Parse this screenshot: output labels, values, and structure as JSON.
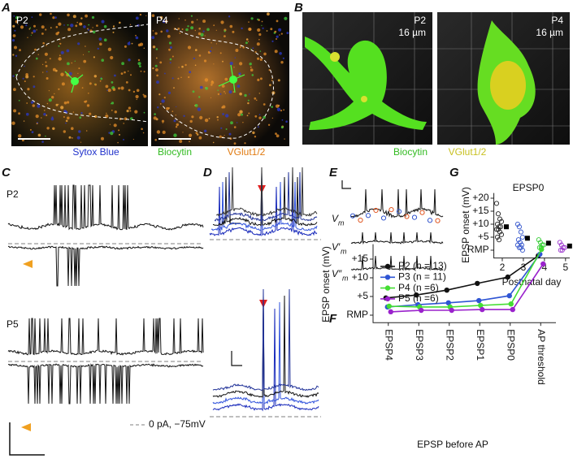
{
  "figure": {
    "A": {
      "letter": "A",
      "images": [
        "P2",
        "P4"
      ],
      "legend": [
        "Sytox Blue",
        "Biocytin",
        "VGlut1/2"
      ]
    },
    "B": {
      "letter": "B",
      "images": [
        {
          "age": "P2",
          "depth": "16 µm"
        },
        {
          "age": "P4",
          "depth": "16 µm"
        }
      ],
      "legend": [
        "Biocytin",
        "VGlut1/2"
      ]
    },
    "C": {
      "letter": "C",
      "rows": [
        "P2",
        "P5"
      ],
      "baseline_note": "0 pA, −75mV"
    },
    "D": {
      "letter": "D"
    },
    "E": {
      "letter": "E",
      "traces": [
        {
          "symbol": "V",
          "sub": "m"
        },
        {
          "symbol": "V′",
          "sub": "m"
        },
        {
          "symbol": "V″",
          "sub": "m"
        }
      ]
    }
  },
  "chart_data": [
    {
      "type": "scatter",
      "panel": "G",
      "title": "EPSP0",
      "y_label": "EPSP onset (mV)",
      "x_label": "Postnatal day",
      "xlim": [
        1.6,
        5.2
      ],
      "xticks": [
        2,
        3,
        4,
        5
      ],
      "ylim": [
        -3,
        22
      ],
      "yticks": [
        {
          "value": 0,
          "label": "RMP"
        },
        {
          "value": 5,
          "label": "+5"
        },
        {
          "value": 10,
          "label": "+10"
        },
        {
          "value": 15,
          "label": "+15"
        },
        {
          "value": 20,
          "label": "+20"
        }
      ],
      "series": [
        {
          "color": "#222222",
          "marker": "open",
          "x": [
            2,
            2,
            2,
            2,
            2,
            2,
            2,
            2,
            2,
            2,
            2,
            2,
            2
          ],
          "values": [
            18,
            14,
            12,
            11,
            10,
            9,
            9,
            8,
            8,
            7,
            6,
            5,
            4
          ]
        },
        {
          "color": "#3355cc",
          "marker": "open",
          "x": [
            3,
            3,
            3,
            3,
            3,
            3,
            3,
            3,
            3,
            3,
            3
          ],
          "values": [
            10,
            9,
            7,
            5,
            4,
            3,
            2,
            2,
            1,
            1,
            0
          ]
        },
        {
          "color": "#33cc33",
          "marker": "open",
          "x": [
            4,
            4,
            4,
            4,
            4,
            4
          ],
          "values": [
            4,
            3,
            2,
            2,
            1,
            1
          ]
        },
        {
          "color": "#9933cc",
          "marker": "open",
          "x": [
            5,
            5,
            5,
            5,
            5,
            5
          ],
          "values": [
            3,
            2,
            1,
            1,
            0,
            0
          ]
        },
        {
          "color": "#000000",
          "marker": "filled",
          "x": [
            2,
            3,
            4,
            5
          ],
          "values": [
            9,
            4.6,
            2.7,
            1.6
          ]
        }
      ]
    },
    {
      "type": "line",
      "panel": "F",
      "y_label": "EPSP onset (mV)",
      "x_label": "EPSP before AP",
      "categories": [
        "EPSP4",
        "EPSP3",
        "EPSP2",
        "EPSP1",
        "EPSP0",
        "AP threshold"
      ],
      "ylim": [
        -2,
        19
      ],
      "yticks": [
        {
          "value": 0,
          "label": "RMP"
        },
        {
          "value": 5,
          "label": "+5"
        },
        {
          "value": 10,
          "label": "+10"
        },
        {
          "value": 15,
          "label": "+15"
        }
      ],
      "series": [
        {
          "name": "P2 (n = 13)",
          "color": "#111111",
          "values": [
            4.6,
            5.4,
            6.7,
            8.5,
            10.2,
            15.9
          ]
        },
        {
          "name": "P3 (n = 11)",
          "color": "#2f55d4",
          "values": [
            2.2,
            2.8,
            3.3,
            3.9,
            5.2,
            16.3
          ]
        },
        {
          "name": "P4 (n =6)",
          "color": "#44dd33",
          "values": [
            2.4,
            2.2,
            2.2,
            2.6,
            3.0,
            17.6
          ]
        },
        {
          "name": "P5 (n =6)",
          "color": "#9a22cc",
          "values": [
            0.9,
            1.3,
            1.3,
            1.5,
            1.5,
            13.7
          ]
        }
      ]
    }
  ]
}
